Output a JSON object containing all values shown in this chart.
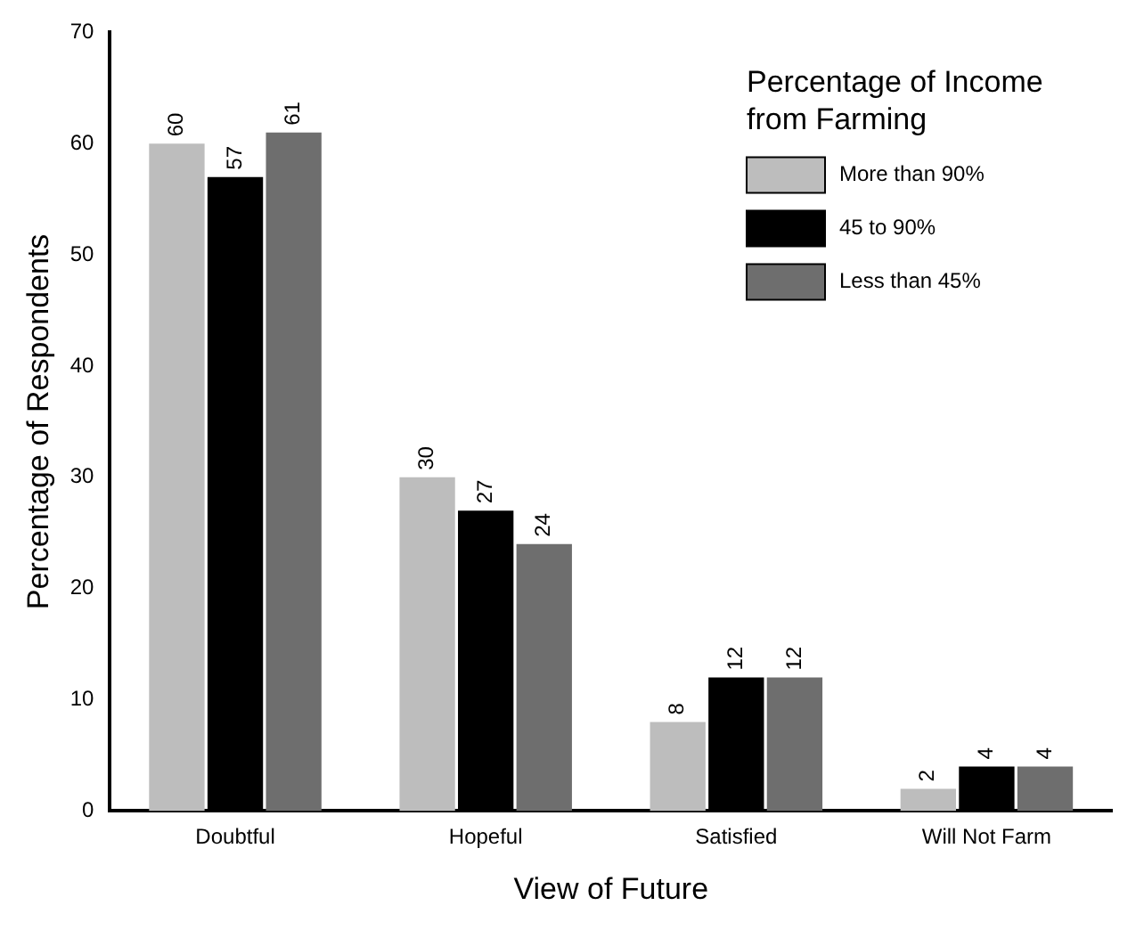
{
  "chart_data": {
    "type": "bar",
    "xlabel": "View of Future",
    "ylabel": "Percentage of Respondents",
    "legend_title": "Percentage of Income from Farming",
    "categories": [
      "Doubtful",
      "Hopeful",
      "Satisfied",
      "Will Not Farm"
    ],
    "series": [
      {
        "name": "More than 90%",
        "color": "#bdbdbd",
        "values": [
          60,
          30,
          8,
          2
        ]
      },
      {
        "name": "45 to 90%",
        "color": "#000000",
        "values": [
          57,
          27,
          12,
          4
        ]
      },
      {
        "name": "Less than 45%",
        "color": "#6e6e6e",
        "values": [
          61,
          24,
          12,
          4
        ]
      }
    ],
    "ylim": [
      0,
      70
    ],
    "yticks": [
      0,
      10,
      20,
      30,
      40,
      50,
      60,
      70
    ],
    "grid": false,
    "legend": "top right",
    "data_labels": true
  }
}
